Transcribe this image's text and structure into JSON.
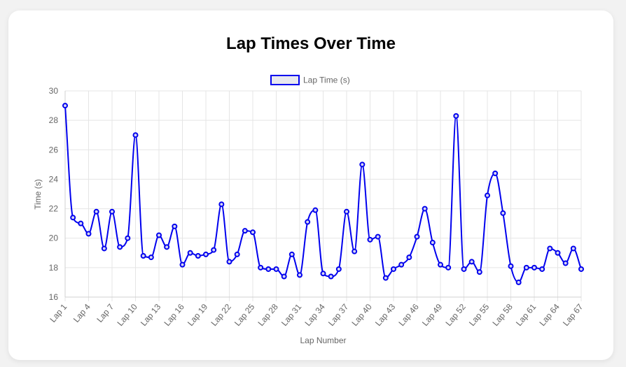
{
  "page": {
    "title": "Lap Times Over Time"
  },
  "chart_data": {
    "type": "line",
    "title": "Lap Times Over Time",
    "xlabel": "Lap Number",
    "ylabel": "Time (s)",
    "ylim": [
      16,
      30
    ],
    "yticks": [
      16,
      18,
      20,
      22,
      24,
      26,
      28,
      30
    ],
    "grid": true,
    "legend_position": "top",
    "line_color": "#0000ee",
    "x": [
      "Lap 1",
      "Lap 2",
      "Lap 3",
      "Lap 4",
      "Lap 5",
      "Lap 6",
      "Lap 7",
      "Lap 8",
      "Lap 9",
      "Lap 10",
      "Lap 11",
      "Lap 12",
      "Lap 13",
      "Lap 14",
      "Lap 15",
      "Lap 16",
      "Lap 17",
      "Lap 18",
      "Lap 19",
      "Lap 20",
      "Lap 21",
      "Lap 22",
      "Lap 23",
      "Lap 24",
      "Lap 25",
      "Lap 26",
      "Lap 27",
      "Lap 28",
      "Lap 29",
      "Lap 30",
      "Lap 31",
      "Lap 32",
      "Lap 33",
      "Lap 34",
      "Lap 35",
      "Lap 36",
      "Lap 37",
      "Lap 38",
      "Lap 39",
      "Lap 40",
      "Lap 41",
      "Lap 42",
      "Lap 43",
      "Lap 44",
      "Lap 45",
      "Lap 46",
      "Lap 47",
      "Lap 48",
      "Lap 49",
      "Lap 50",
      "Lap 51",
      "Lap 52",
      "Lap 53",
      "Lap 54",
      "Lap 55",
      "Lap 56",
      "Lap 57",
      "Lap 58",
      "Lap 59",
      "Lap 60",
      "Lap 61",
      "Lap 62",
      "Lap 63",
      "Lap 64",
      "Lap 65",
      "Lap 66",
      "Lap 67"
    ],
    "tick_labels_shown": [
      "Lap 1",
      "Lap 4",
      "Lap 7",
      "Lap 10",
      "Lap 13",
      "Lap 16",
      "Lap 19",
      "Lap 22",
      "Lap 25",
      "Lap 28",
      "Lap 31",
      "Lap 34",
      "Lap 37",
      "Lap 40",
      "Lap 43",
      "Lap 46",
      "Lap 49",
      "Lap 52",
      "Lap 55",
      "Lap 58",
      "Lap 61",
      "Lap 64",
      "Lap 67"
    ],
    "series": [
      {
        "name": "Lap Time (s)",
        "values": [
          29.0,
          21.4,
          21.0,
          20.3,
          21.8,
          19.3,
          21.8,
          19.4,
          20.0,
          27.0,
          18.8,
          18.7,
          20.2,
          19.4,
          20.8,
          18.2,
          19.0,
          18.8,
          18.9,
          19.2,
          22.3,
          18.4,
          18.9,
          20.5,
          20.4,
          18.0,
          17.9,
          17.9,
          17.4,
          18.9,
          17.5,
          21.1,
          21.9,
          17.6,
          17.4,
          17.9,
          21.8,
          19.1,
          25.0,
          19.9,
          20.1,
          17.3,
          17.9,
          18.2,
          18.7,
          20.1,
          22.0,
          19.7,
          18.2,
          18.0,
          28.3,
          17.9,
          18.4,
          17.7,
          22.9,
          24.4,
          21.7,
          18.1,
          17.0,
          18.0,
          18.0,
          17.9,
          19.3,
          19.0,
          18.3,
          19.3,
          17.9
        ]
      }
    ]
  }
}
